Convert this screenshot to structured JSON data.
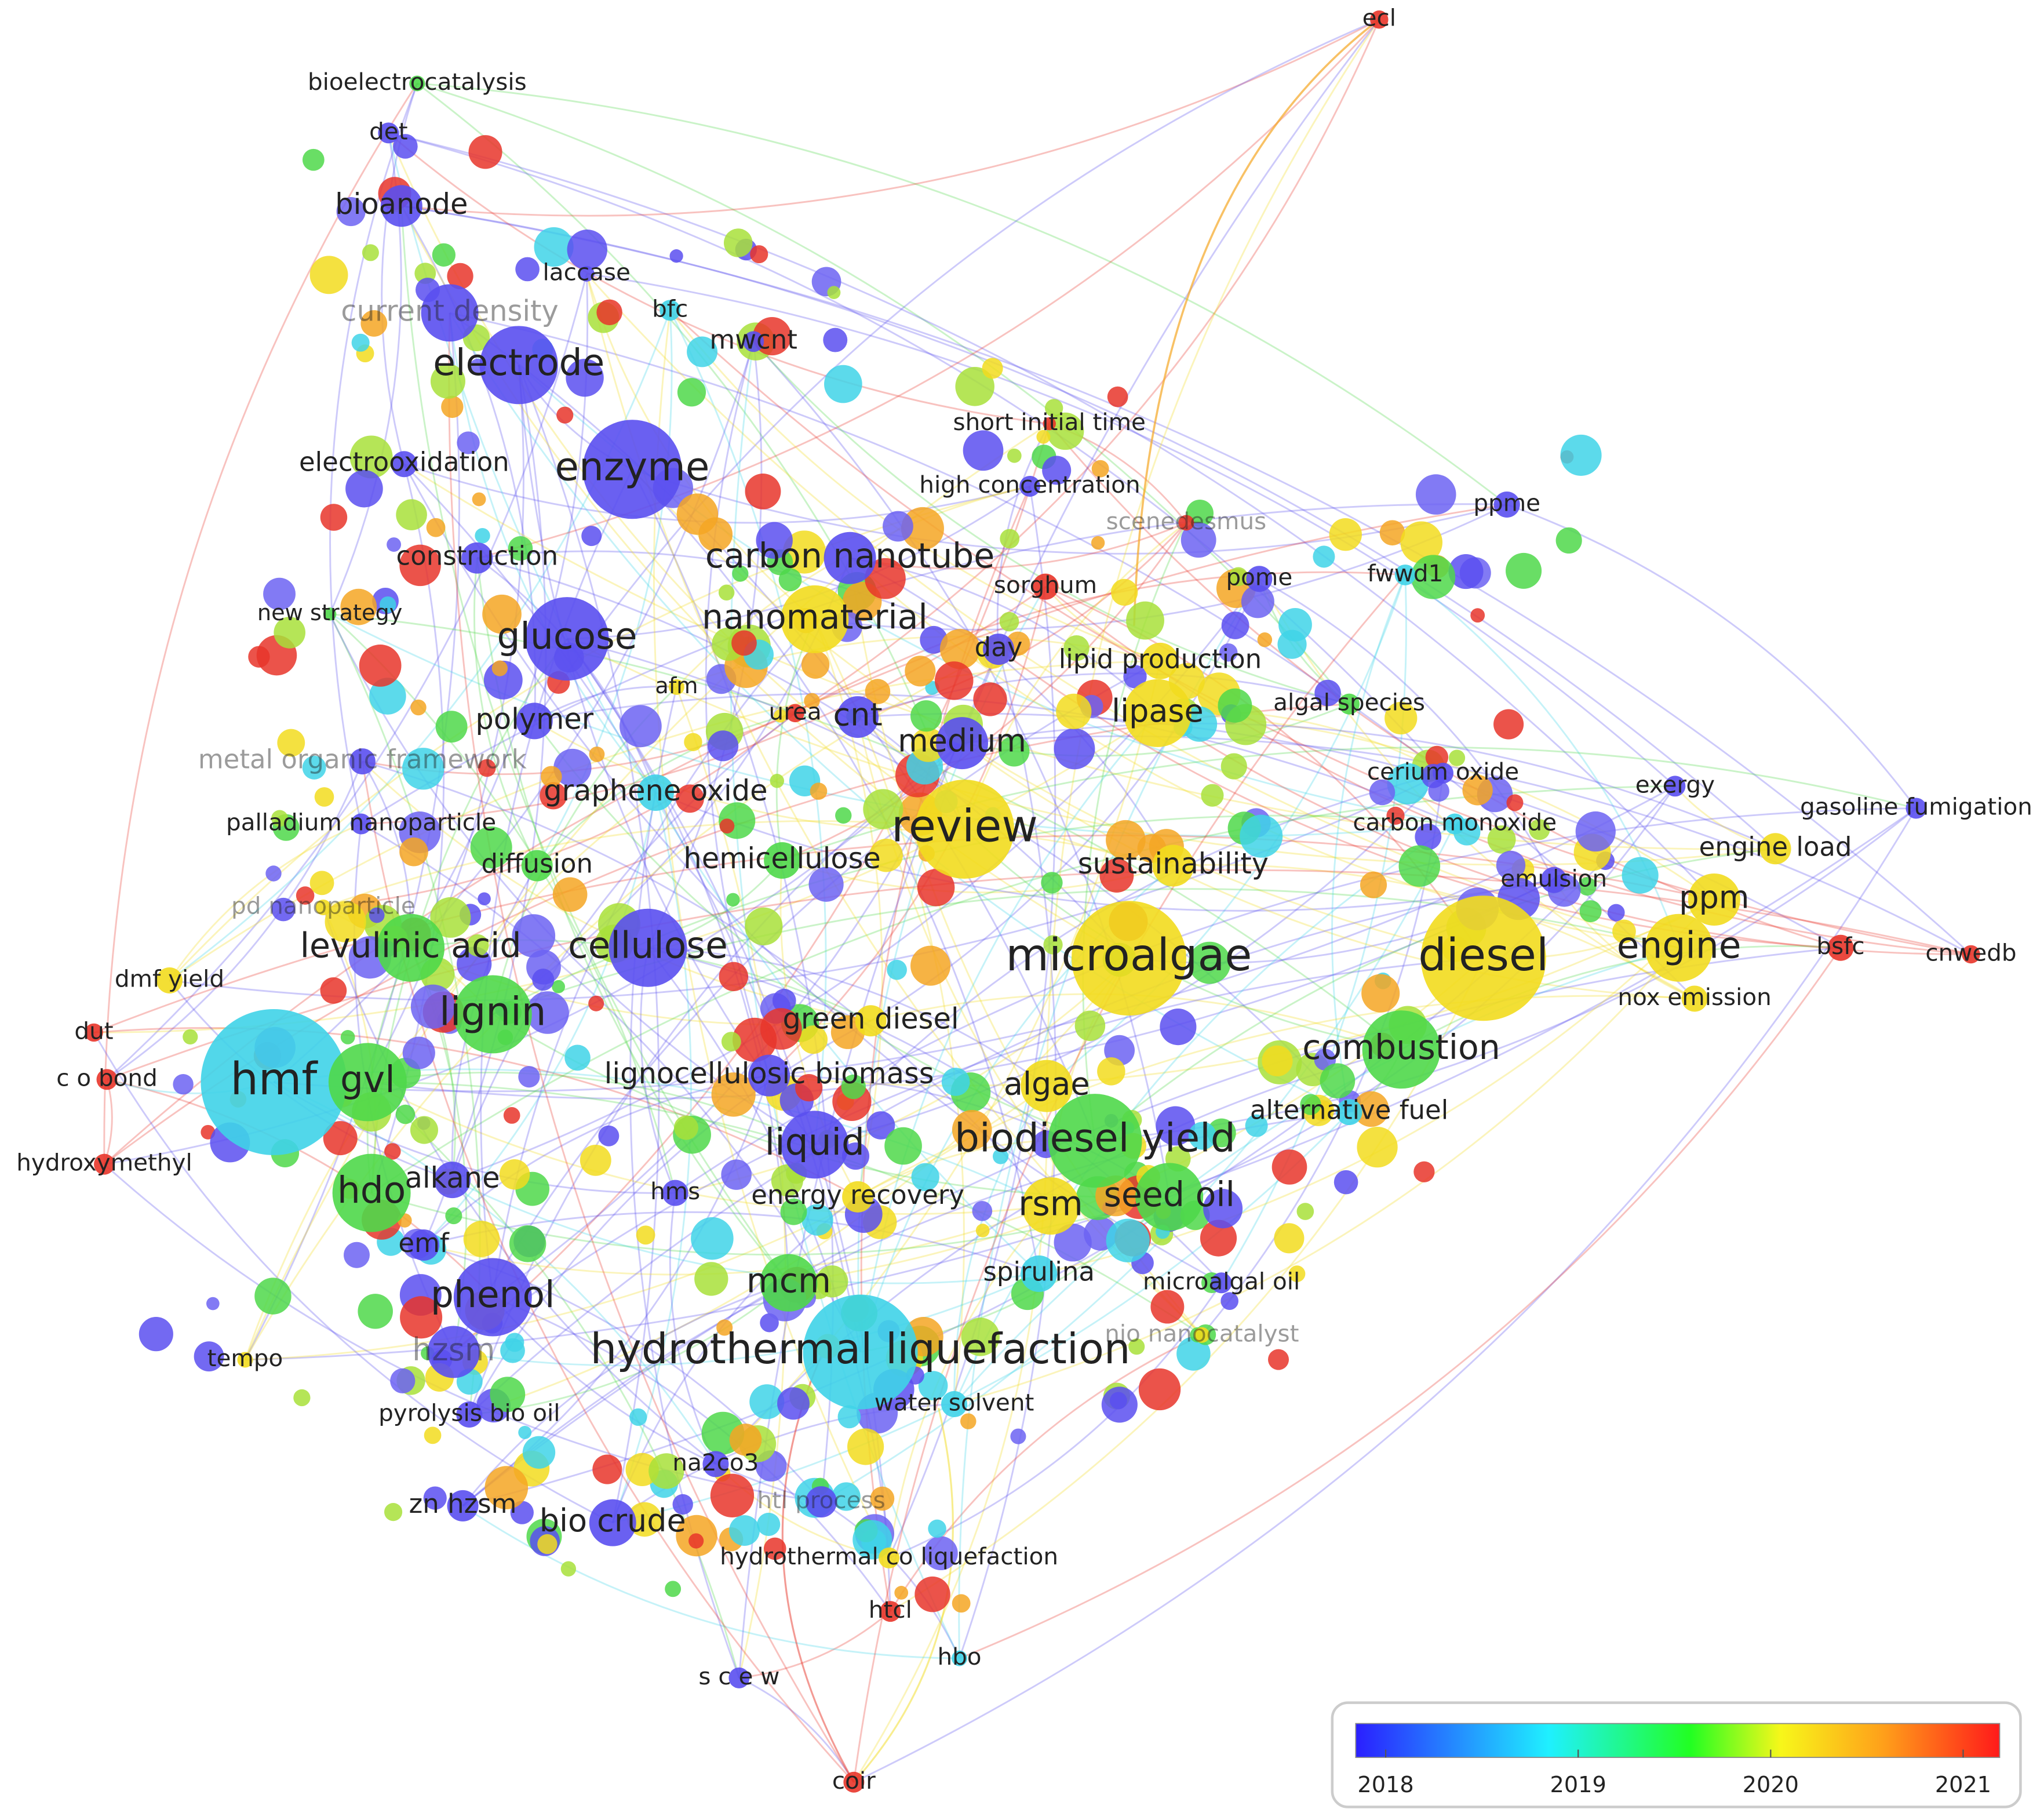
{
  "nodes": [
    {
      "label": "bioelectrocatalysis",
      "color": "#4fd84a"
    },
    {
      "label": "det",
      "color": "#5a4ff0"
    },
    {
      "label": "bioanode",
      "color": "#5a4ff0"
    },
    {
      "label": "laccase",
      "color": "#5a4ff0"
    },
    {
      "label": "bfc",
      "color": "#3fd3e8"
    },
    {
      "label": "mwcnt",
      "color": "#5a4ff0"
    },
    {
      "label": "current density",
      "color": "#5a4ff0"
    },
    {
      "label": "electrode",
      "color": "#5a4ff0"
    },
    {
      "label": "electrooxidation",
      "color": "#5a4ff0"
    },
    {
      "label": "enzyme",
      "color": "#5a4ff0"
    },
    {
      "label": "short initial time",
      "color": "#e8352a"
    },
    {
      "label": "high concentration",
      "color": "#5a4ff0"
    },
    {
      "label": "ecl",
      "color": "#e8352a"
    },
    {
      "label": "ppme",
      "color": "#5a4ff0"
    },
    {
      "label": "scenedesmus",
      "color": "#e8352a"
    },
    {
      "label": "construction",
      "color": "#5a4ff0"
    },
    {
      "label": "carbon nanotube",
      "color": "#5a4ff0"
    },
    {
      "label": "sorghum",
      "color": "#e8352a"
    },
    {
      "label": "pome",
      "color": "#5a4ff0"
    },
    {
      "label": "fwwd1",
      "color": "#3fd3e8"
    },
    {
      "label": "new strategy",
      "color": "#4fd84a"
    },
    {
      "label": "glucose",
      "color": "#5a4ff0"
    },
    {
      "label": "nanomaterial",
      "color": "#f2dc1e"
    },
    {
      "label": "day",
      "color": "#5a4ff0"
    },
    {
      "label": "lipid production",
      "color": "#f2dc1e"
    },
    {
      "label": "afm",
      "color": "#f2dc1e"
    },
    {
      "label": "algal species",
      "color": "#4fd84a"
    },
    {
      "label": "polymer",
      "color": "#5a4ff0"
    },
    {
      "label": "urea",
      "color": "#e8352a"
    },
    {
      "label": "cnt",
      "color": "#5a4ff0"
    },
    {
      "label": "lipase",
      "color": "#f2dc1e"
    },
    {
      "label": "medium",
      "color": "#5a4ff0"
    },
    {
      "label": "metal organic framework",
      "color": "#5a4ff0"
    },
    {
      "label": "cerium oxide",
      "color": "#5a4ff0"
    },
    {
      "label": "exergy",
      "color": "#5a4ff0"
    },
    {
      "label": "gasoline fumigation",
      "color": "#5a4ff0"
    },
    {
      "label": "graphene oxide",
      "color": "#3fd3e8"
    },
    {
      "label": "palladium nanoparticle",
      "color": "#5a4ff0"
    },
    {
      "label": "carbon monoxide",
      "color": "#3fd3e8"
    },
    {
      "label": "review",
      "color": "#f2dc1e"
    },
    {
      "label": "engine load",
      "color": "#f2dc1e"
    },
    {
      "label": "diffusion",
      "color": "#4fd84a"
    },
    {
      "label": "hemicellulose",
      "color": "#4fd84a"
    },
    {
      "label": "sustainability",
      "color": "#f2dc1e"
    },
    {
      "label": "emulsion",
      "color": "#5a4ff0"
    },
    {
      "label": "pd nanoparticle",
      "color": "#f2dc1e"
    },
    {
      "label": "ppm",
      "color": "#f2dc1e"
    },
    {
      "label": "levulinic acid",
      "color": "#4fd84a"
    },
    {
      "label": "cellulose",
      "color": "#5a4ff0"
    },
    {
      "label": "microalgae",
      "color": "#f2dc1e"
    },
    {
      "label": "diesel",
      "color": "#f2dc1e"
    },
    {
      "label": "engine",
      "color": "#f2dc1e"
    },
    {
      "label": "bsfc",
      "color": "#e8352a"
    },
    {
      "label": "cnwedb",
      "color": "#e8352a"
    },
    {
      "label": "dmf yield",
      "color": "#f2dc1e"
    },
    {
      "label": "nox emission",
      "color": "#f2dc1e"
    },
    {
      "label": "lignin",
      "color": "#4fd84a"
    },
    {
      "label": "green diesel",
      "color": "#f2dc1e"
    },
    {
      "label": "combustion",
      "color": "#4fd84a"
    },
    {
      "label": "dut",
      "color": "#e8352a"
    },
    {
      "label": "c o bond",
      "color": "#e8352a"
    },
    {
      "label": "hmf",
      "color": "#3fd3e8"
    },
    {
      "label": "gvl",
      "color": "#4fd84a"
    },
    {
      "label": "lignocellulosic biomass",
      "color": "#5a4ff0"
    },
    {
      "label": "algae",
      "color": "#f2dc1e"
    },
    {
      "label": "alternative fuel",
      "color": "#3fd3e8"
    },
    {
      "label": "hydroxymethyl",
      "color": "#e8352a"
    },
    {
      "label": "liquid",
      "color": "#5a4ff0"
    },
    {
      "label": "biodiesel yield",
      "color": "#4fd84a"
    },
    {
      "label": "hdo",
      "color": "#4fd84a"
    },
    {
      "label": "alkane",
      "color": "#5a4ff0"
    },
    {
      "label": "hms",
      "color": "#5a4ff0"
    },
    {
      "label": "energy recovery",
      "color": "#f2dc1e"
    },
    {
      "label": "rsm",
      "color": "#f2dc1e"
    },
    {
      "label": "seed oil",
      "color": "#4fd84a"
    },
    {
      "label": "emf",
      "color": "#5a4ff0"
    },
    {
      "label": "spirulina",
      "color": "#3fd3e8"
    },
    {
      "label": "microalgal oil",
      "color": "#5a4ff0"
    },
    {
      "label": "mcm",
      "color": "#4fd84a"
    },
    {
      "label": "phenol",
      "color": "#5a4ff0"
    },
    {
      "label": "nio nanocatalyst",
      "color": "#f2dc1e"
    },
    {
      "label": "tempo",
      "color": "#f2dc1e"
    },
    {
      "label": "hydrothermal liquefaction",
      "color": "#3fd3e8"
    },
    {
      "label": "hzsm",
      "color": "#5a4ff0"
    },
    {
      "label": "pyrolysis bio oil",
      "color": "#5a4ff0"
    },
    {
      "label": "water solvent",
      "color": "#3fd3e8"
    },
    {
      "label": "na2co3",
      "color": "#5a4ff0"
    },
    {
      "label": "zn hzsm",
      "color": "#5a4ff0"
    },
    {
      "label": "bio crude",
      "color": "#5a4ff0"
    },
    {
      "label": "htl process",
      "color": "#5a4ff0"
    },
    {
      "label": "hydrothermal co liquefaction",
      "color": "#f2dc1e"
    },
    {
      "label": "htcl",
      "color": "#e8352a"
    },
    {
      "label": "hbo",
      "color": "#3fd3e8"
    },
    {
      "label": "s c e w",
      "color": "#5a4ff0"
    },
    {
      "label": "coir",
      "color": "#e8352a"
    }
  ],
  "colorbar": {
    "ticks": [
      2018,
      2019,
      2020,
      2021
    ]
  }
}
